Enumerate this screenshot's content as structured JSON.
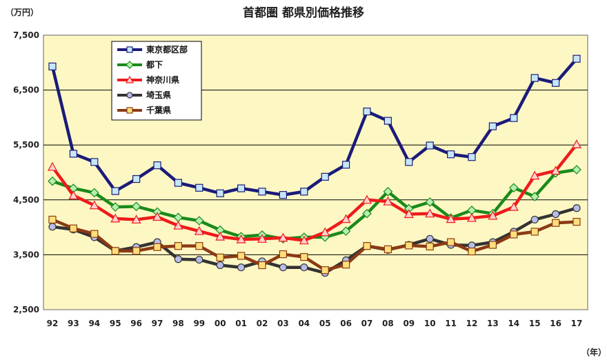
{
  "chart_data": {
    "type": "line",
    "title": "首都圏 都県別価格推移",
    "y_unit": "（万円）",
    "x_unit": "（年）",
    "ylim": [
      2500,
      7500
    ],
    "y_ticks": [
      "2,500",
      "3,500",
      "4,500",
      "5,500",
      "6,500",
      "7,500"
    ],
    "grid": "horizontal",
    "legend_position": "top-left",
    "categories": [
      "92",
      "93",
      "94",
      "95",
      "96",
      "97",
      "98",
      "99",
      "00",
      "01",
      "02",
      "03",
      "04",
      "05",
      "06",
      "07",
      "08",
      "09",
      "10",
      "11",
      "12",
      "13",
      "14",
      "15",
      "16",
      "17"
    ],
    "series": [
      {
        "name": "東京都区部",
        "color": "#1b1b7a",
        "marker": "square",
        "marker_fill": "#c6e6fa",
        "values": [
          6930,
          5340,
          5190,
          4660,
          4880,
          5130,
          4810,
          4720,
          4620,
          4710,
          4650,
          4590,
          4650,
          4920,
          5140,
          6110,
          5940,
          5190,
          5490,
          5330,
          5280,
          5840,
          5990,
          6720,
          6630,
          7070
        ]
      },
      {
        "name": "都下",
        "color": "#1a8a1a",
        "marker": "diamond",
        "marker_fill": "#b5efb0",
        "values": [
          4840,
          4710,
          4630,
          4370,
          4380,
          4280,
          4180,
          4120,
          3950,
          3830,
          3860,
          3790,
          3820,
          3820,
          3930,
          4250,
          4650,
          4340,
          4460,
          4170,
          4310,
          4250,
          4720,
          4560,
          4990,
          5050
        ]
      },
      {
        "name": "神奈川県",
        "color": "#ee1b1b",
        "marker": "triangle",
        "marker_fill": "#ffd0d0",
        "values": [
          5100,
          4580,
          4400,
          4160,
          4140,
          4190,
          4030,
          3930,
          3830,
          3780,
          3790,
          3810,
          3760,
          3910,
          4150,
          4500,
          4470,
          4240,
          4250,
          4150,
          4170,
          4210,
          4370,
          4940,
          5030,
          5510
        ]
      },
      {
        "name": "埼玉県",
        "color": "#333333",
        "marker": "circle",
        "marker_fill": "#b8bce8",
        "values": [
          4010,
          3960,
          3820,
          3570,
          3640,
          3730,
          3420,
          3410,
          3310,
          3270,
          3380,
          3270,
          3270,
          3170,
          3400,
          3660,
          3590,
          3680,
          3790,
          3680,
          3670,
          3730,
          3920,
          4140,
          4240,
          4350
        ]
      },
      {
        "name": "千葉県",
        "color": "#8b3a14",
        "marker": "square",
        "marker_fill": "#ffdf7a",
        "values": [
          4140,
          3980,
          3880,
          3570,
          3570,
          3640,
          3660,
          3660,
          3450,
          3480,
          3310,
          3510,
          3460,
          3220,
          3320,
          3660,
          3600,
          3670,
          3650,
          3730,
          3560,
          3680,
          3870,
          3920,
          4080,
          4100
        ]
      }
    ]
  }
}
